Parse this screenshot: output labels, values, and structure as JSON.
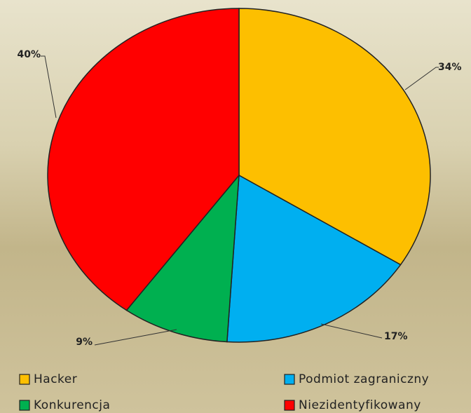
{
  "chart_data": {
    "type": "pie",
    "categories": [
      "Hacker",
      "Podmiot zagraniczny",
      "Konkurencja",
      "Niezidentyfikowany"
    ],
    "values": [
      34,
      17,
      9,
      40
    ],
    "value_labels": [
      "34%",
      "17%",
      "9%",
      "40%"
    ],
    "colors": [
      "#fdbf00",
      "#00aff0",
      "#00b050",
      "#ff0000"
    ]
  }
}
